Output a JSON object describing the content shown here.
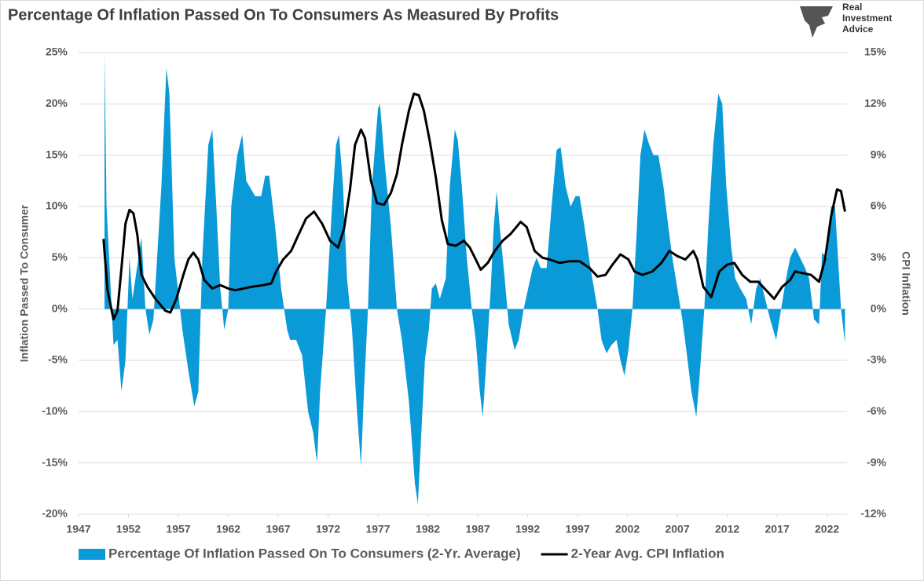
{
  "chart_data": {
    "type": "combo",
    "title": "Percentage Of Inflation Passed On To Consumers As Measured By Profits",
    "y_label": "Inflation Passed To Consumer",
    "y2_label": "CPI Inflation",
    "xlim": [
      1947,
      2024
    ],
    "xticks": [
      1947,
      1952,
      1957,
      1962,
      1967,
      1972,
      1977,
      1982,
      1987,
      1992,
      1997,
      2002,
      2007,
      2012,
      2017,
      2022
    ],
    "ylim": [
      -20,
      25
    ],
    "yticks": [
      {
        "value": 25,
        "label": "25%"
      },
      {
        "value": 20,
        "label": "20%"
      },
      {
        "value": 15,
        "label": "15%"
      },
      {
        "value": 10,
        "label": "10%"
      },
      {
        "value": 5,
        "label": "5%"
      },
      {
        "value": 0,
        "label": "0%"
      },
      {
        "value": -5,
        "label": "-5%"
      },
      {
        "value": -10,
        "label": "-10%"
      },
      {
        "value": -15,
        "label": "-15%"
      },
      {
        "value": -20,
        "label": "-20%"
      }
    ],
    "y2lim": [
      -12,
      15
    ],
    "y2ticks": [
      {
        "value": 15,
        "label": "15%"
      },
      {
        "value": 12,
        "label": "12%"
      },
      {
        "value": 9,
        "label": "9%"
      },
      {
        "value": 6,
        "label": "6%"
      },
      {
        "value": 3,
        "label": "3%"
      },
      {
        "value": 0,
        "label": "0%"
      },
      {
        "value": -3,
        "label": "-3%"
      },
      {
        "value": -6,
        "label": "-6%"
      },
      {
        "value": -9,
        "label": "-9%"
      },
      {
        "value": -12,
        "label": "-12%"
      }
    ],
    "grid": true,
    "legend": "bottom",
    "series": [
      {
        "name": "Percentage Of Inflation Passed On To Consumers (2-Yr. Average)",
        "type": "area",
        "color": "#0a9ad8",
        "x": [
          1949.6,
          1949.8,
          1950.5,
          1950.9,
          1951.3,
          1951.7,
          1952.1,
          1952.4,
          1953.0,
          1953.3,
          1953.7,
          1954.1,
          1954.5,
          1955.3,
          1955.8,
          1956.1,
          1956.6,
          1957.4,
          1958.0,
          1958.6,
          1959.0,
          1959.4,
          1960.0,
          1960.4,
          1960.8,
          1961.2,
          1961.6,
          1962.0,
          1962.3,
          1962.9,
          1963.4,
          1963.8,
          1964.7,
          1965.3,
          1965.7,
          1966.1,
          1966.7,
          1967.3,
          1967.9,
          1968.2,
          1968.8,
          1969.4,
          1970.0,
          1970.5,
          1970.9,
          1971.2,
          1971.8,
          1972.4,
          1972.8,
          1973.1,
          1973.5,
          1973.9,
          1974.4,
          1974.9,
          1975.3,
          1975.6,
          1976.0,
          1976.4,
          1977.0,
          1977.2,
          1977.7,
          1978.3,
          1978.9,
          1979.4,
          1980.1,
          1980.7,
          1981.0,
          1981.3,
          1981.7,
          1982.1,
          1982.4,
          1982.8,
          1983.2,
          1983.8,
          1984.2,
          1984.7,
          1985.0,
          1985.4,
          1985.9,
          1986.4,
          1986.8,
          1987.2,
          1987.5,
          1987.8,
          1988.3,
          1988.6,
          1988.9,
          1989.2,
          1989.7,
          1990.1,
          1990.7,
          1991.1,
          1991.6,
          1992.5,
          1992.9,
          1993.3,
          1993.9,
          1994.4,
          1994.9,
          1995.3,
          1995.8,
          1996.3,
          1996.8,
          1997.2,
          1997.7,
          1998.3,
          1999.0,
          1999.4,
          1999.9,
          2000.4,
          2000.9,
          2001.3,
          2001.7,
          2002.1,
          2002.5,
          2002.9,
          2003.3,
          2003.7,
          2004.2,
          2004.6,
          2005.1,
          2005.6,
          2006.1,
          2006.5,
          2007.0,
          2007.5,
          2007.9,
          2008.4,
          2008.9,
          2009.2,
          2009.7,
          2010.1,
          2010.6,
          2011.1,
          2011.5,
          2011.9,
          2012.4,
          2012.8,
          2013.3,
          2013.9,
          2014.4,
          2014.9,
          2015.3,
          2015.8,
          2016.3,
          2016.9,
          2017.4,
          2017.9,
          2018.3,
          2018.8,
          2019.3,
          2019.8,
          2020.2,
          2020.7,
          2021.2,
          2021.5,
          2022.0,
          2022.4,
          2022.8,
          2023.1,
          2023.4,
          2023.8
        ],
        "values": [
          25,
          10,
          -3.5,
          -3,
          -8,
          -5,
          5,
          1,
          5,
          7,
          0,
          -2.5,
          -1,
          12,
          23.5,
          21,
          5,
          -2,
          -6,
          -9.5,
          -8,
          5,
          16,
          17.5,
          10,
          2,
          -2,
          0,
          10,
          15,
          17,
          12.5,
          11,
          11,
          13,
          13,
          8,
          2,
          -2,
          -3,
          -3,
          -4.5,
          -10,
          -12,
          -15,
          -8,
          0,
          10,
          16,
          17,
          12,
          3,
          -2,
          -10,
          -15.3,
          -8,
          0,
          12,
          19.5,
          20,
          14,
          8,
          0,
          -3,
          -9,
          -17,
          -19,
          -13,
          -5,
          -2,
          2,
          2.5,
          1,
          3,
          12,
          17.5,
          16.5,
          12,
          5,
          0,
          -3,
          -8,
          -10.5,
          -6,
          2,
          8,
          11.5,
          8,
          3,
          -1.5,
          -4,
          -3,
          0,
          4,
          5,
          4,
          4,
          10,
          15.5,
          15.8,
          12,
          10,
          11,
          11,
          8,
          4,
          0,
          -3,
          -4.3,
          -3.5,
          -3,
          -5,
          -6.5,
          -4,
          0,
          7,
          15,
          17.5,
          16,
          15,
          15,
          12,
          8,
          5,
          2,
          -1,
          -4,
          -8,
          -10.5,
          -7,
          0,
          8,
          16,
          21,
          20,
          12,
          6,
          3,
          2,
          1,
          -1.5,
          2,
          3,
          1,
          -1,
          -3,
          0,
          3,
          5,
          6,
          5,
          4,
          3,
          -1,
          -1.5,
          5.5,
          5,
          10,
          10,
          5,
          0,
          -3.3
        ]
      },
      {
        "name": "2-Year Avg. CPI Inflation",
        "type": "line",
        "axis": "y2",
        "color": "#000000",
        "x": [
          1949.5,
          1949.9,
          1950.5,
          1950.9,
          1951.3,
          1951.7,
          1952.1,
          1952.5,
          1952.9,
          1953.3,
          1953.9,
          1954.7,
          1955.7,
          1956.2,
          1956.8,
          1957.5,
          1958.0,
          1958.5,
          1959.0,
          1959.6,
          1960.4,
          1961.2,
          1962.0,
          1962.7,
          1963.5,
          1964.3,
          1965.5,
          1966.3,
          1966.8,
          1967.5,
          1968.3,
          1969.0,
          1969.8,
          1970.6,
          1971.4,
          1972.2,
          1973.0,
          1973.6,
          1974.2,
          1974.7,
          1975.3,
          1975.7,
          1976.3,
          1976.9,
          1977.6,
          1978.3,
          1978.9,
          1979.4,
          1980.1,
          1980.6,
          1981.1,
          1981.6,
          1982.2,
          1982.8,
          1983.4,
          1984.0,
          1984.8,
          1985.6,
          1986.2,
          1986.8,
          1987.3,
          1988.0,
          1988.7,
          1989.5,
          1990.3,
          1991.3,
          1991.9,
          1992.7,
          1993.5,
          1994.2,
          1995.2,
          1996.2,
          1997.2,
          1998.2,
          1999.0,
          1999.8,
          2000.5,
          2001.3,
          2002.1,
          2002.7,
          2003.5,
          2004.5,
          2005.4,
          2006.2,
          2007.0,
          2007.8,
          2008.6,
          2009.0,
          2009.6,
          2010.4,
          2011.2,
          2012.0,
          2012.7,
          2013.5,
          2014.3,
          2015.1,
          2015.9,
          2016.7,
          2017.5,
          2018.3,
          2018.8,
          2019.6,
          2020.4,
          2021.2,
          2021.8,
          2022.4,
          2023.0,
          2023.4,
          2023.8
        ],
        "values": [
          4.1,
          1.1,
          -0.6,
          -0.1,
          2.4,
          5,
          5.8,
          5.6,
          4.3,
          2,
          1.3,
          0.6,
          -0.1,
          -0.2,
          0.6,
          2,
          2.9,
          3.3,
          2.9,
          1.7,
          1.2,
          1.4,
          1.2,
          1.1,
          1.2,
          1.3,
          1.4,
          1.5,
          2.2,
          2.9,
          3.4,
          4.3,
          5.3,
          5.7,
          5,
          4,
          3.6,
          4.7,
          7,
          9.6,
          10.5,
          10,
          7.5,
          6.2,
          6.1,
          6.8,
          7.9,
          9.6,
          11.6,
          12.6,
          12.5,
          11.6,
          9.8,
          7.7,
          5.2,
          3.8,
          3.7,
          4,
          3.6,
          2.9,
          2.3,
          2.7,
          3.4,
          4,
          4.4,
          5.1,
          4.8,
          3.4,
          3,
          2.9,
          2.7,
          2.8,
          2.8,
          2.4,
          1.9,
          2,
          2.6,
          3.2,
          2.9,
          2.2,
          2,
          2.2,
          2.7,
          3.4,
          3.1,
          2.9,
          3.4,
          2.9,
          1.3,
          0.7,
          2.2,
          2.6,
          2.7,
          2,
          1.6,
          1.6,
          1.1,
          0.6,
          1.3,
          1.7,
          2.2,
          2.1,
          2,
          1.6,
          2.9,
          5.4,
          7,
          6.9,
          5.7
        ]
      }
    ]
  },
  "logo_text": [
    "Real",
    "Investment",
    "Advice"
  ]
}
